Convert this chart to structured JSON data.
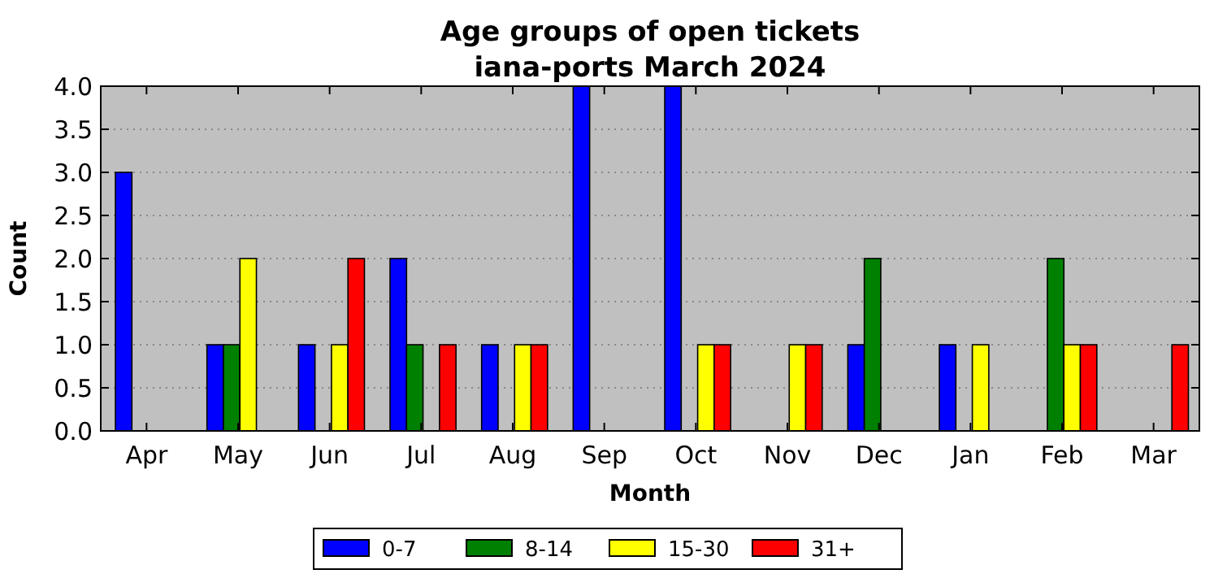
{
  "chart_data": {
    "type": "bar",
    "title": "Age groups of open tickets",
    "subtitle": "iana-ports March 2024",
    "xlabel": "Month",
    "ylabel": "Count",
    "categories": [
      "Apr",
      "May",
      "Jun",
      "Jul",
      "Aug",
      "Sep",
      "Oct",
      "Nov",
      "Dec",
      "Jan",
      "Feb",
      "Mar"
    ],
    "series": [
      {
        "name": "0-7",
        "color": "#0000ff",
        "values": [
          3,
          1,
          1,
          2,
          1,
          4,
          4,
          0,
          1,
          1,
          0,
          0
        ]
      },
      {
        "name": "8-14",
        "color": "#008000",
        "values": [
          0,
          1,
          0,
          1,
          0,
          0,
          0,
          0,
          2,
          0,
          2,
          0
        ]
      },
      {
        "name": "15-30",
        "color": "#ffff00",
        "values": [
          0,
          2,
          1,
          0,
          1,
          0,
          1,
          1,
          0,
          1,
          1,
          0
        ]
      },
      {
        "name": "31+",
        "color": "#ff0000",
        "values": [
          0,
          0,
          2,
          1,
          1,
          0,
          1,
          1,
          0,
          0,
          1,
          1
        ]
      }
    ],
    "ylim": [
      0,
      4
    ],
    "yticks": [
      {
        "value": 0,
        "label": "0.0"
      },
      {
        "value": 0.5,
        "label": "0.5"
      },
      {
        "value": 1,
        "label": "1.0"
      },
      {
        "value": 1.5,
        "label": "1.5"
      },
      {
        "value": 2,
        "label": "2.0"
      },
      {
        "value": 2.5,
        "label": "2.5"
      },
      {
        "value": 3,
        "label": "3.0"
      },
      {
        "value": 3.5,
        "label": "3.5"
      },
      {
        "value": 4,
        "label": "4.0"
      }
    ],
    "grid": "y",
    "legend": "bottom"
  }
}
